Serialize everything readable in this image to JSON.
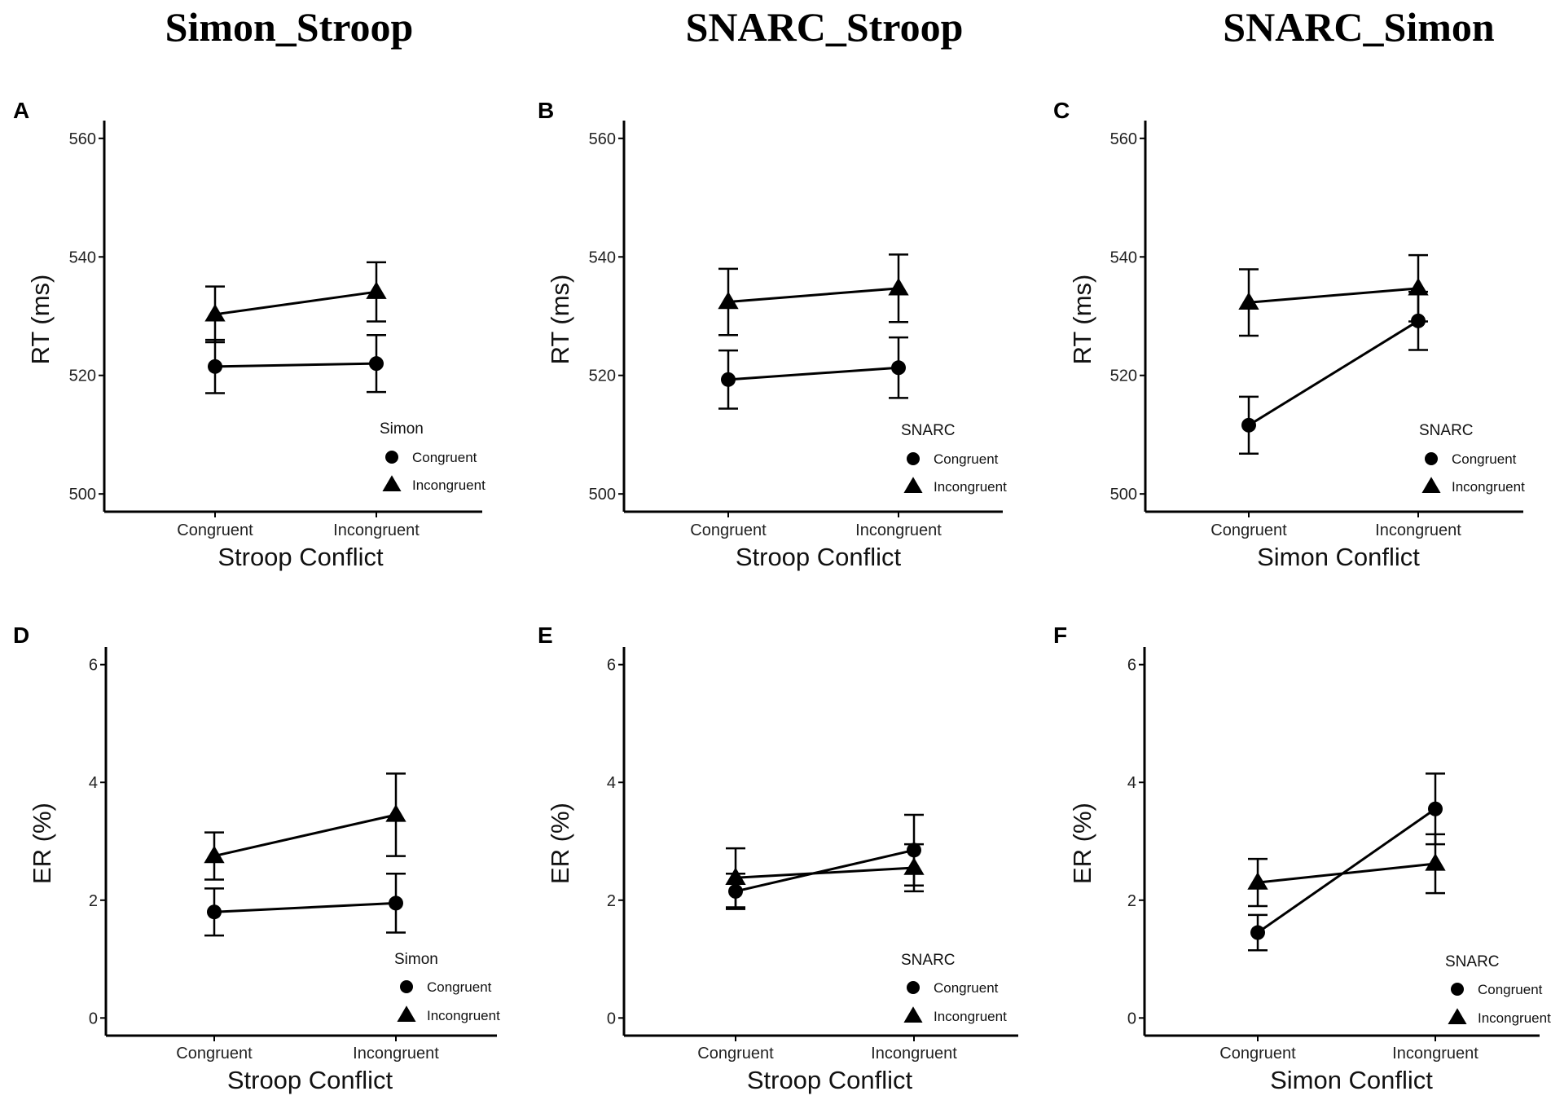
{
  "column_titles": [
    "Simon_Stroop",
    "SNARC_Stroop",
    "SNARC_Simon"
  ],
  "legend_labels": {
    "circle": "Congruent",
    "triangle": "Incongruent"
  },
  "chart_data": [
    {
      "panel": "A",
      "type": "line",
      "xlabel": "Stroop Conflict",
      "ylabel": "RT (ms)",
      "categories": [
        "Congruent",
        "Incongruent"
      ],
      "ylim": [
        497,
        563
      ],
      "yticks": [
        500,
        520,
        540,
        560
      ],
      "legend_title": "Simon",
      "series": [
        {
          "name": "Congruent",
          "marker": "circle",
          "values": [
            521.5,
            522.0
          ],
          "errors": [
            4.5,
            4.8
          ]
        },
        {
          "name": "Incongruent",
          "marker": "triangle",
          "values": [
            530.3,
            534.1
          ],
          "errors": [
            4.7,
            5.0
          ]
        }
      ]
    },
    {
      "panel": "B",
      "type": "line",
      "xlabel": "Stroop Conflict",
      "ylabel": "RT (ms)",
      "categories": [
        "Congruent",
        "Incongruent"
      ],
      "ylim": [
        497,
        563
      ],
      "yticks": [
        500,
        520,
        540,
        560
      ],
      "legend_title": "SNARC",
      "series": [
        {
          "name": "Congruent",
          "marker": "circle",
          "values": [
            519.3,
            521.3
          ],
          "errors": [
            4.9,
            5.1
          ]
        },
        {
          "name": "Incongruent",
          "marker": "triangle",
          "values": [
            532.4,
            534.7
          ],
          "errors": [
            5.6,
            5.7
          ]
        }
      ]
    },
    {
      "panel": "C",
      "type": "line",
      "xlabel": "Simon Conflict",
      "ylabel": "RT (ms)",
      "categories": [
        "Congruent",
        "Incongruent"
      ],
      "ylim": [
        497,
        563
      ],
      "yticks": [
        500,
        520,
        540,
        560
      ],
      "legend_title": "SNARC",
      "series": [
        {
          "name": "Congruent",
          "marker": "circle",
          "values": [
            511.6,
            529.2
          ],
          "errors": [
            4.8,
            4.9
          ]
        },
        {
          "name": "Incongruent",
          "marker": "triangle",
          "values": [
            532.3,
            534.7
          ],
          "errors": [
            5.6,
            5.6
          ]
        }
      ]
    },
    {
      "panel": "D",
      "type": "line",
      "xlabel": "Stroop Conflict",
      "ylabel": "ER (%)",
      "categories": [
        "Congruent",
        "Incongruent"
      ],
      "ylim": [
        -0.3,
        6.3
      ],
      "yticks": [
        0,
        2,
        4,
        6
      ],
      "legend_title": "Simon",
      "series": [
        {
          "name": "Congruent",
          "marker": "circle",
          "values": [
            1.8,
            1.95
          ],
          "errors": [
            0.4,
            0.5
          ]
        },
        {
          "name": "Incongruent",
          "marker": "triangle",
          "values": [
            2.75,
            3.45
          ],
          "errors": [
            0.4,
            0.7
          ]
        }
      ]
    },
    {
      "panel": "E",
      "type": "line",
      "xlabel": "Stroop Conflict",
      "ylabel": "ER (%)",
      "categories": [
        "Congruent",
        "Incongruent"
      ],
      "ylim": [
        -0.3,
        6.3
      ],
      "yticks": [
        0,
        2,
        4,
        6
      ],
      "legend_title": "SNARC",
      "series": [
        {
          "name": "Congruent",
          "marker": "circle",
          "values": [
            2.15,
            2.85
          ],
          "errors": [
            0.3,
            0.6
          ]
        },
        {
          "name": "Incongruent",
          "marker": "triangle",
          "values": [
            2.38,
            2.55
          ],
          "errors": [
            0.5,
            0.4
          ]
        }
      ]
    },
    {
      "panel": "F",
      "type": "line",
      "xlabel": "Simon Conflict",
      "ylabel": "ER (%)",
      "categories": [
        "Congruent",
        "Incongruent"
      ],
      "ylim": [
        -0.3,
        6.3
      ],
      "yticks": [
        0,
        2,
        4,
        6
      ],
      "legend_title": "SNARC",
      "series": [
        {
          "name": "Congruent",
          "marker": "circle",
          "values": [
            1.45,
            3.55
          ],
          "errors": [
            0.3,
            0.6
          ]
        },
        {
          "name": "Incongruent",
          "marker": "triangle",
          "values": [
            2.3,
            2.62
          ],
          "errors": [
            0.4,
            0.5
          ]
        }
      ]
    }
  ]
}
